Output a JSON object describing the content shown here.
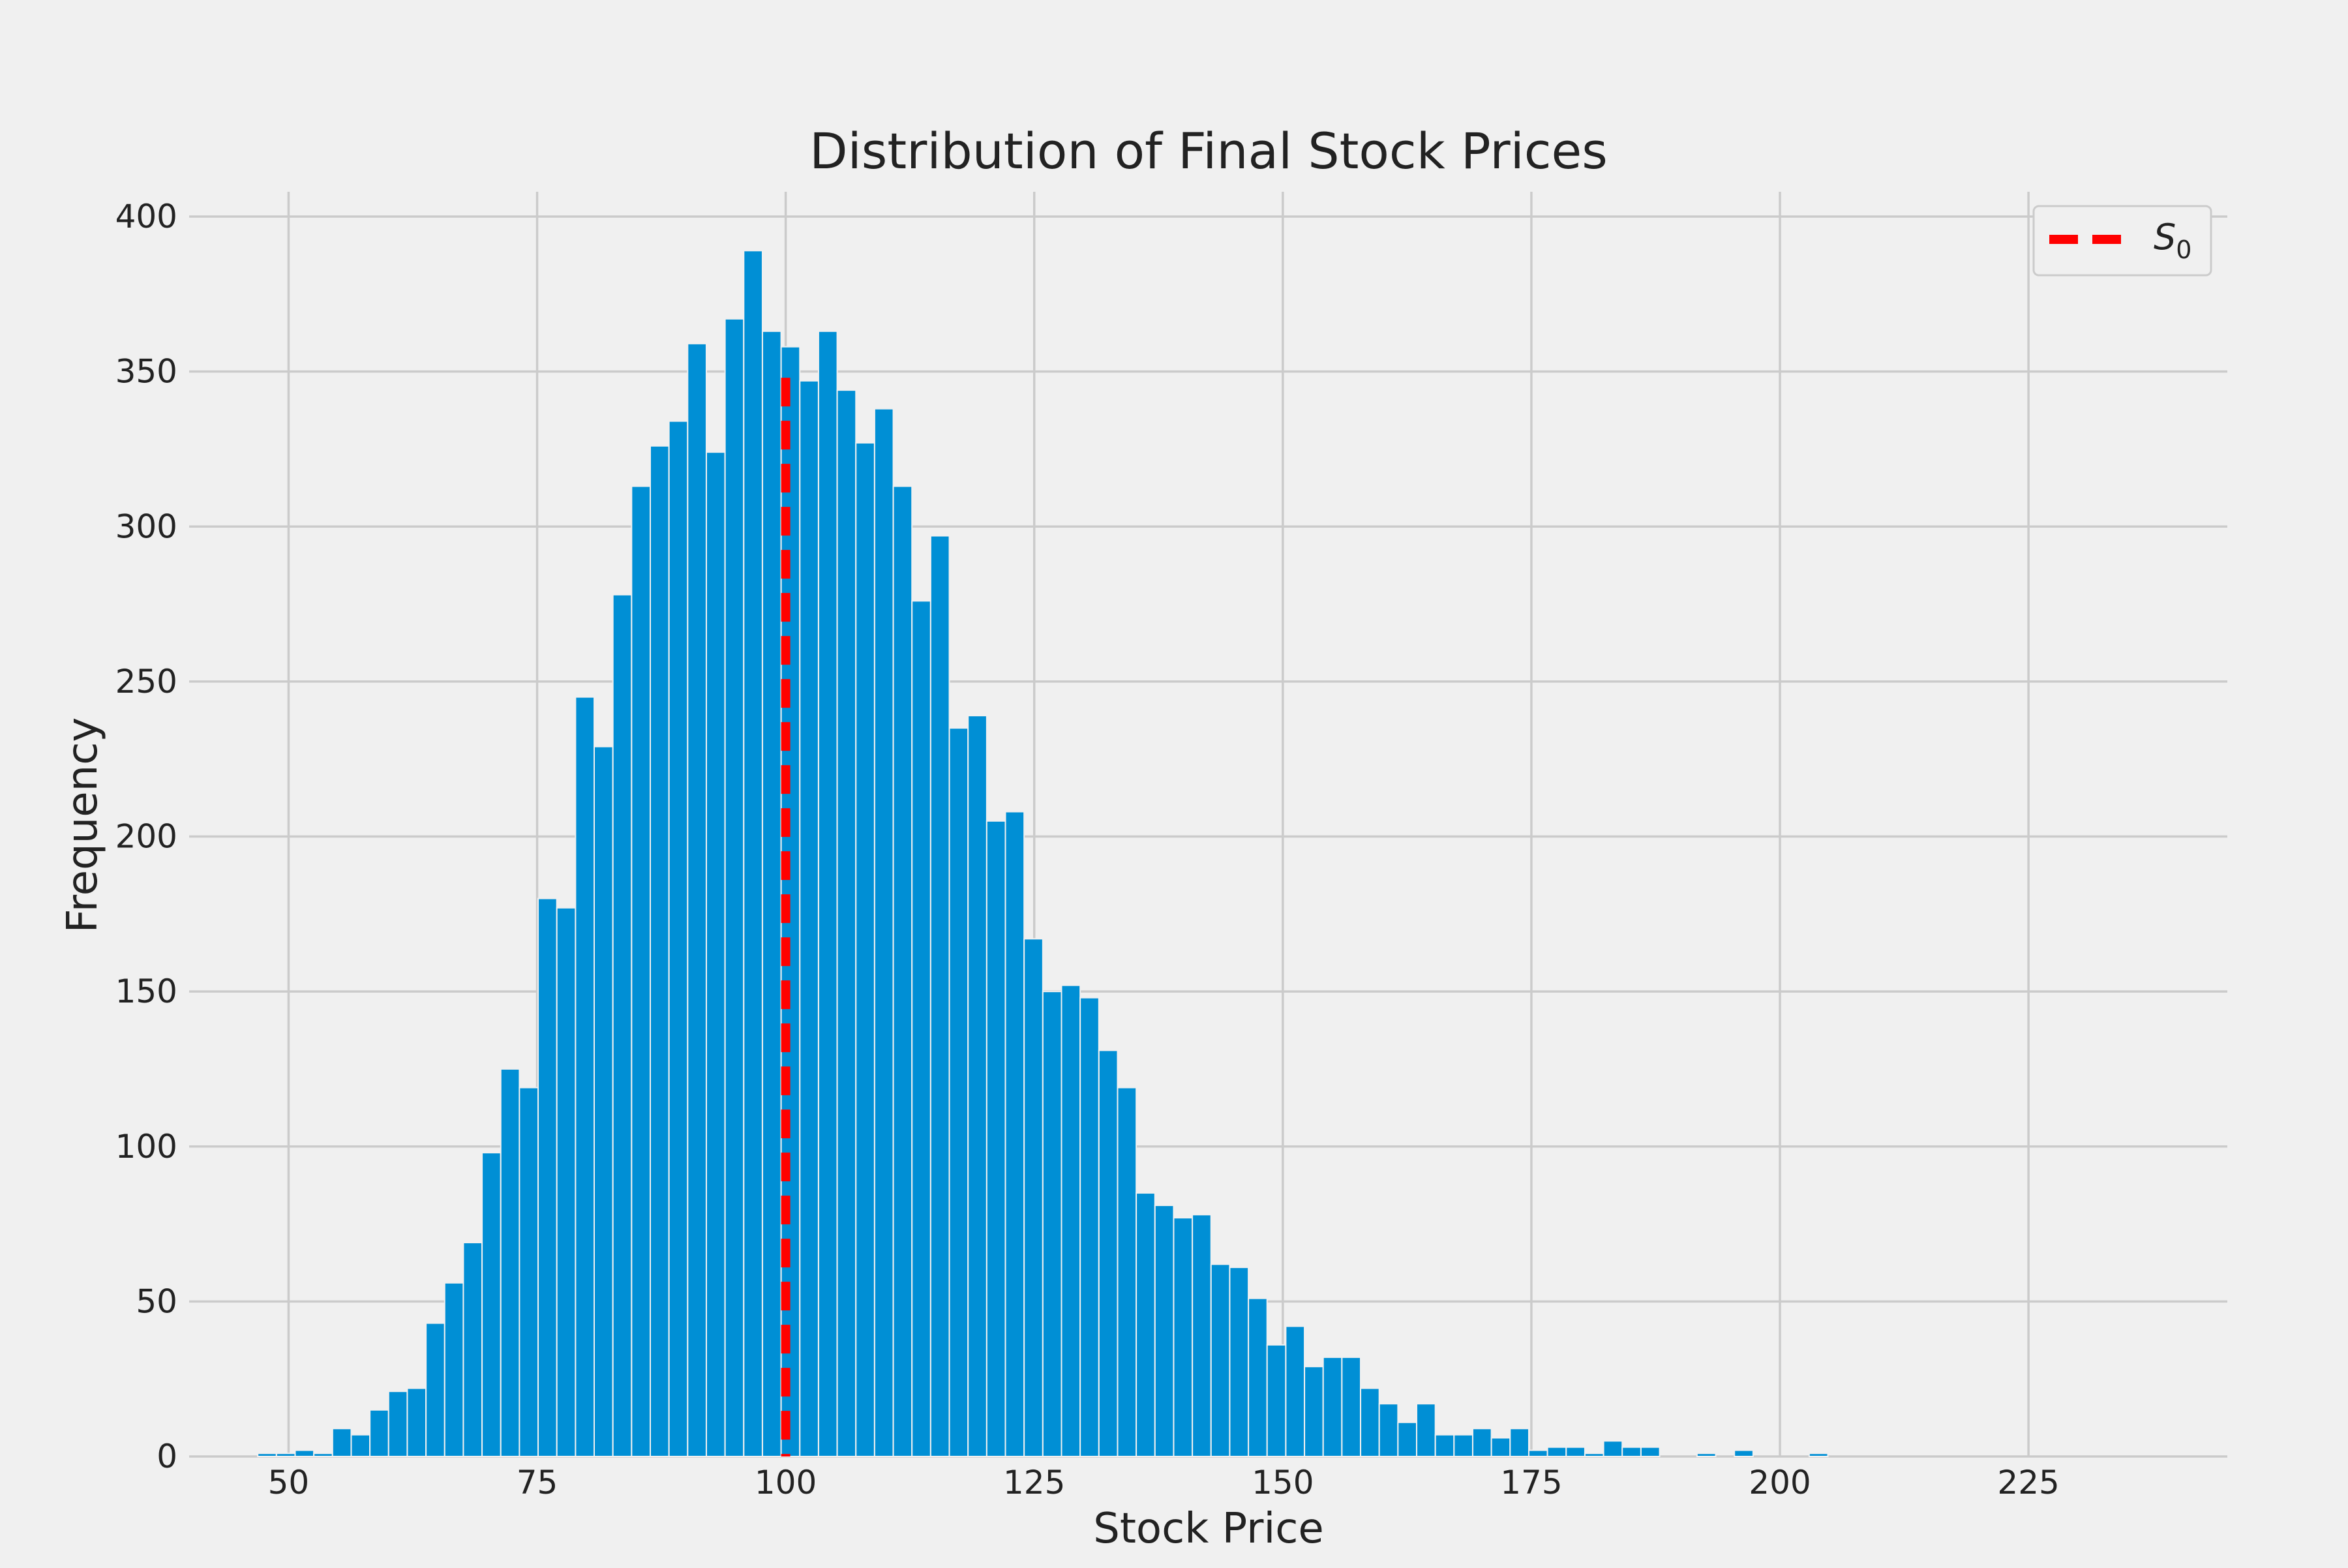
{
  "chart_data": {
    "type": "bar",
    "title": "Distribution of Final Stock Prices",
    "xlabel": "Stock Price",
    "ylabel": "Frequency",
    "xlim": [
      40,
      245
    ],
    "ylim": [
      0,
      408
    ],
    "xticks": [
      50,
      75,
      100,
      125,
      150,
      175,
      200,
      225
    ],
    "yticks": [
      0,
      50,
      100,
      150,
      200,
      250,
      300,
      350,
      400
    ],
    "grid": true,
    "bin_start": 46.9,
    "bin_width": 1.88,
    "values": [
      1,
      1,
      2,
      1,
      9,
      7,
      15,
      21,
      22,
      43,
      56,
      69,
      98,
      125,
      119,
      180,
      177,
      245,
      229,
      278,
      313,
      326,
      334,
      359,
      324,
      367,
      389,
      363,
      358,
      347,
      363,
      344,
      327,
      338,
      313,
      276,
      297,
      235,
      239,
      205,
      208,
      167,
      150,
      152,
      148,
      131,
      119,
      85,
      81,
      77,
      78,
      62,
      61,
      51,
      36,
      42,
      29,
      32,
      32,
      22,
      17,
      11,
      17,
      7,
      7,
      9,
      6,
      9,
      2,
      3,
      3,
      1,
      5,
      3,
      3,
      0,
      0,
      1,
      0,
      2,
      0,
      0,
      0,
      1
    ],
    "reference_line": {
      "label": "S",
      "subscript": "0",
      "x": 100,
      "color": "#ff0000"
    },
    "legend": {
      "position": "top-right"
    },
    "colors": {
      "bar": "#008fd5",
      "background": "#f0f0f0",
      "grid": "#cbcbcb"
    }
  }
}
